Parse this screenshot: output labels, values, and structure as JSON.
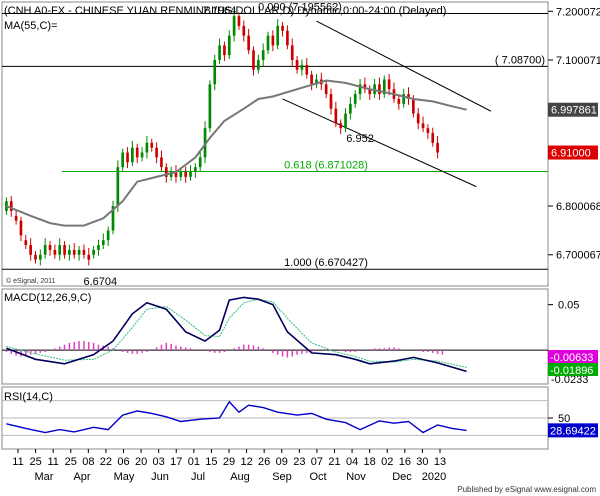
{
  "chart_data": [
    {
      "type": "candlestick",
      "title": "(CNH A0-FX - CHINESE YUAN RENMINBI/US DOLLAR,D) Dynamic,0:00-24:00 (Delayed)",
      "indicator_label": "MA(55,C)=",
      "watermark": "© eSignal, 2011",
      "ylim": [
        6.64,
        7.215
      ],
      "y_ticks": [
        "7.200072",
        "7.100071",
        "6.800068",
        "6.700067"
      ],
      "price_tags": [
        {
          "label": "6.997861",
          "value": 6.9979,
          "color": "#444444"
        },
        {
          "label": "6.91000",
          "value": 6.91,
          "color": "#dd0000"
        }
      ],
      "horizontal_lines": [
        {
          "value": 7.1956,
          "label": "0.000 (7.195562)",
          "color": "#000000"
        },
        {
          "value": 7.087,
          "label": "( 7.08700)",
          "color": "#000000"
        },
        {
          "value": 6.871,
          "label": "0.618 (6.871028)",
          "color": "#00aa00"
        },
        {
          "value": 6.6704,
          "label": "1.000 (6.670427)",
          "color": "#000000"
        }
      ],
      "annotations": [
        {
          "text": "7.1964",
          "x": 44,
          "y": 7.1964
        },
        {
          "text": "6.952",
          "x": 73,
          "y": 6.952
        },
        {
          "text": "6.6704",
          "x": 6,
          "y": 6.6704
        }
      ],
      "channel_lines": [
        {
          "from": [
            64,
            7.18
          ],
          "to": [
            100,
            6.995
          ]
        },
        {
          "from": [
            57,
            7.02
          ],
          "to": [
            97,
            6.84
          ]
        }
      ],
      "moving_average": [
        [
          0,
          6.8
        ],
        [
          5,
          6.78
        ],
        [
          9,
          6.765
        ],
        [
          12,
          6.76
        ],
        [
          16,
          6.76
        ],
        [
          20,
          6.775
        ],
        [
          24,
          6.81
        ],
        [
          27,
          6.85
        ],
        [
          31,
          6.86
        ],
        [
          35,
          6.87
        ],
        [
          39,
          6.9
        ],
        [
          42,
          6.94
        ],
        [
          45,
          6.975
        ],
        [
          49,
          7.0
        ],
        [
          52,
          7.02
        ],
        [
          55,
          7.025
        ],
        [
          60,
          7.04
        ],
        [
          66,
          7.058
        ],
        [
          70,
          7.053
        ],
        [
          75,
          7.04
        ],
        [
          80,
          7.03
        ],
        [
          84,
          7.02
        ],
        [
          88,
          7.015
        ],
        [
          92,
          7.005
        ],
        [
          95,
          6.998
        ]
      ],
      "candles": [
        [
          6.79,
          6.81
        ],
        [
          6.81,
          6.79
        ],
        [
          6.78,
          6.77
        ],
        [
          6.77,
          6.74
        ],
        [
          6.73,
          6.72
        ],
        [
          6.72,
          6.7
        ],
        [
          6.7,
          6.69
        ],
        [
          6.69,
          6.7
        ],
        [
          6.7,
          6.72
        ],
        [
          6.72,
          6.71
        ],
        [
          6.71,
          6.7
        ],
        [
          6.7,
          6.72
        ],
        [
          6.72,
          6.7
        ],
        [
          6.7,
          6.71
        ],
        [
          6.71,
          6.7
        ],
        [
          6.7,
          6.71
        ],
        [
          6.71,
          6.7
        ],
        [
          6.7,
          6.69
        ],
        [
          6.7,
          6.71
        ],
        [
          6.71,
          6.72
        ],
        [
          6.72,
          6.73
        ],
        [
          6.73,
          6.75
        ],
        [
          6.75,
          6.8
        ],
        [
          6.8,
          6.88
        ],
        [
          6.88,
          6.91
        ],
        [
          6.91,
          6.89
        ],
        [
          6.89,
          6.92
        ],
        [
          6.92,
          6.9
        ],
        [
          6.9,
          6.91
        ],
        [
          6.91,
          6.93
        ],
        [
          6.93,
          6.92
        ],
        [
          6.92,
          6.9
        ],
        [
          6.9,
          6.88
        ],
        [
          6.88,
          6.86
        ],
        [
          6.86,
          6.87
        ],
        [
          6.87,
          6.86
        ],
        [
          6.86,
          6.87
        ],
        [
          6.87,
          6.86
        ],
        [
          6.86,
          6.87
        ],
        [
          6.87,
          6.88
        ],
        [
          6.88,
          6.9
        ],
        [
          6.9,
          6.96
        ],
        [
          6.96,
          7.05
        ],
        [
          7.05,
          7.1
        ],
        [
          7.1,
          7.13
        ],
        [
          7.13,
          7.11
        ],
        [
          7.11,
          7.15
        ],
        [
          7.15,
          7.19
        ],
        [
          7.19,
          7.17
        ],
        [
          7.17,
          7.15
        ],
        [
          7.15,
          7.12
        ],
        [
          7.12,
          7.08
        ],
        [
          7.08,
          7.1
        ],
        [
          7.1,
          7.12
        ],
        [
          7.12,
          7.15
        ],
        [
          7.15,
          7.13
        ],
        [
          7.13,
          7.17
        ],
        [
          7.17,
          7.16
        ],
        [
          7.16,
          7.13
        ],
        [
          7.13,
          7.1
        ],
        [
          7.1,
          7.08
        ],
        [
          7.08,
          7.09
        ],
        [
          7.09,
          7.07
        ],
        [
          7.07,
          7.05
        ],
        [
          7.05,
          7.06
        ],
        [
          7.06,
          7.05
        ],
        [
          7.05,
          7.03
        ],
        [
          7.03,
          7.0
        ],
        [
          7.0,
          6.97
        ],
        [
          6.97,
          6.96
        ],
        [
          6.96,
          6.99
        ],
        [
          6.99,
          7.01
        ],
        [
          7.01,
          7.03
        ],
        [
          7.03,
          7.05
        ],
        [
          7.05,
          7.04
        ],
        [
          7.04,
          7.03
        ],
        [
          7.03,
          7.05
        ],
        [
          7.05,
          7.03
        ],
        [
          7.03,
          7.06
        ],
        [
          7.06,
          7.04
        ],
        [
          7.04,
          7.02
        ],
        [
          7.02,
          7.01
        ],
        [
          7.01,
          7.03
        ],
        [
          7.03,
          7.02
        ],
        [
          7.02,
          6.99
        ],
        [
          6.99,
          6.97
        ],
        [
          6.97,
          6.96
        ],
        [
          6.96,
          6.95
        ],
        [
          6.95,
          6.93
        ],
        [
          6.93,
          6.91
        ]
      ]
    },
    {
      "type": "line",
      "title": "MACD(12,26,9,C)",
      "ylim": [
        -0.035,
        0.065
      ],
      "y_ticks": [
        "0.05"
      ],
      "tags": [
        {
          "label": "-0.00633",
          "value": -0.00633,
          "color": "#dd00dd"
        },
        {
          "label": "-0.01896",
          "value": -0.01896,
          "color": "#00aa00"
        },
        {
          "label": "-0.0233",
          "value": -0.0233,
          "color": "#000000"
        }
      ],
      "macd": [
        [
          0,
          0.002
        ],
        [
          6,
          -0.01
        ],
        [
          12,
          -0.015
        ],
        [
          18,
          -0.005
        ],
        [
          22,
          0.01
        ],
        [
          26,
          0.04
        ],
        [
          29,
          0.052
        ],
        [
          33,
          0.045
        ],
        [
          37,
          0.02
        ],
        [
          41,
          0.01
        ],
        [
          44,
          0.022
        ],
        [
          46,
          0.055
        ],
        [
          49,
          0.058
        ],
        [
          52,
          0.056
        ],
        [
          55,
          0.05
        ],
        [
          58,
          0.02
        ],
        [
          63,
          -0.003
        ],
        [
          68,
          -0.005
        ],
        [
          72,
          -0.01
        ],
        [
          75,
          -0.015
        ],
        [
          80,
          -0.012
        ],
        [
          84,
          -0.008
        ],
        [
          89,
          -0.014
        ],
        [
          95,
          -0.0233
        ]
      ],
      "signal": [
        [
          0,
          0.004
        ],
        [
          6,
          -0.004
        ],
        [
          12,
          -0.011
        ],
        [
          18,
          -0.01
        ],
        [
          22,
          0.0
        ],
        [
          26,
          0.025
        ],
        [
          29,
          0.045
        ],
        [
          33,
          0.048
        ],
        [
          37,
          0.033
        ],
        [
          41,
          0.016
        ],
        [
          44,
          0.015
        ],
        [
          46,
          0.035
        ],
        [
          49,
          0.052
        ],
        [
          52,
          0.056
        ],
        [
          55,
          0.053
        ],
        [
          58,
          0.035
        ],
        [
          63,
          0.008
        ],
        [
          68,
          -0.002
        ],
        [
          72,
          -0.007
        ],
        [
          75,
          -0.012
        ],
        [
          80,
          -0.013
        ],
        [
          84,
          -0.01
        ],
        [
          89,
          -0.012
        ],
        [
          95,
          -0.01896
        ]
      ],
      "histogram": [
        -0.002,
        -0.004,
        -0.006,
        -0.007,
        -0.006,
        -0.005,
        -0.004,
        -0.003,
        -0.002,
        0.0,
        0.002,
        0.004,
        0.006,
        0.008,
        0.009,
        0.01,
        0.01,
        0.009,
        0.008,
        0.006,
        0.005,
        0.004,
        0.002,
        0.0,
        -0.002,
        -0.003,
        -0.004,
        -0.004,
        -0.003,
        -0.002,
        0.0,
        0.003,
        0.006,
        0.008,
        0.007,
        0.005,
        0.004,
        0.003,
        0.002,
        0.001,
        0.0,
        -0.001,
        -0.002,
        -0.003,
        -0.003,
        -0.002,
        0.0,
        0.002,
        0.004,
        0.006,
        0.006,
        0.005,
        0.004,
        0.002,
        -0.001,
        -0.003,
        -0.005,
        -0.007,
        -0.008,
        -0.007,
        -0.005,
        -0.004,
        -0.003,
        -0.002,
        -0.001,
        0.0,
        0.001,
        0.001,
        0.0,
        -0.001,
        -0.002,
        -0.002,
        -0.002,
        -0.001,
        0.0,
        0.001,
        0.002,
        0.002,
        0.002,
        0.003,
        0.003,
        0.002,
        0.001,
        0.0,
        0.0,
        -0.001,
        -0.002,
        -0.002,
        -0.003,
        -0.004,
        -0.005
      ]
    },
    {
      "type": "line",
      "title": "RSI(14,C)",
      "ylim": [
        0,
        100
      ],
      "y_ticks": [
        "50"
      ],
      "reference_levels": [
        80,
        50,
        20
      ],
      "tag": {
        "label": "28.69422",
        "value": 28.69422,
        "color": "#0000cc"
      },
      "rsi": [
        [
          0,
          40
        ],
        [
          4,
          32
        ],
        [
          8,
          25
        ],
        [
          11,
          30
        ],
        [
          14,
          26
        ],
        [
          18,
          34
        ],
        [
          21,
          30
        ],
        [
          24,
          55
        ],
        [
          27,
          62
        ],
        [
          30,
          58
        ],
        [
          33,
          52
        ],
        [
          36,
          44
        ],
        [
          40,
          48
        ],
        [
          44,
          50
        ],
        [
          46,
          78
        ],
        [
          48,
          60
        ],
        [
          50,
          72
        ],
        [
          53,
          68
        ],
        [
          56,
          60
        ],
        [
          60,
          55
        ],
        [
          63,
          58
        ],
        [
          66,
          48
        ],
        [
          70,
          42
        ],
        [
          73,
          30
        ],
        [
          77,
          45
        ],
        [
          80,
          41
        ],
        [
          83,
          44
        ],
        [
          86,
          25
        ],
        [
          89,
          38
        ],
        [
          92,
          32
        ],
        [
          95,
          28.7
        ]
      ]
    }
  ],
  "x_axis": {
    "day_labels": [
      "11",
      "25",
      "11",
      "25",
      "08",
      "22",
      "06",
      "20",
      "03",
      "17",
      "01",
      "15",
      "29",
      "12",
      "26",
      "09",
      "23",
      "07",
      "21",
      "04",
      "18",
      "02",
      "16",
      "30",
      "13"
    ],
    "month_labels": [
      "Mar",
      "Apr",
      "May",
      "Jun",
      "Jul",
      "Aug",
      "Sep",
      "Oct",
      "Nov",
      "Dec",
      "2020"
    ]
  },
  "footer": "Published by eSignal  www.esignal.com"
}
